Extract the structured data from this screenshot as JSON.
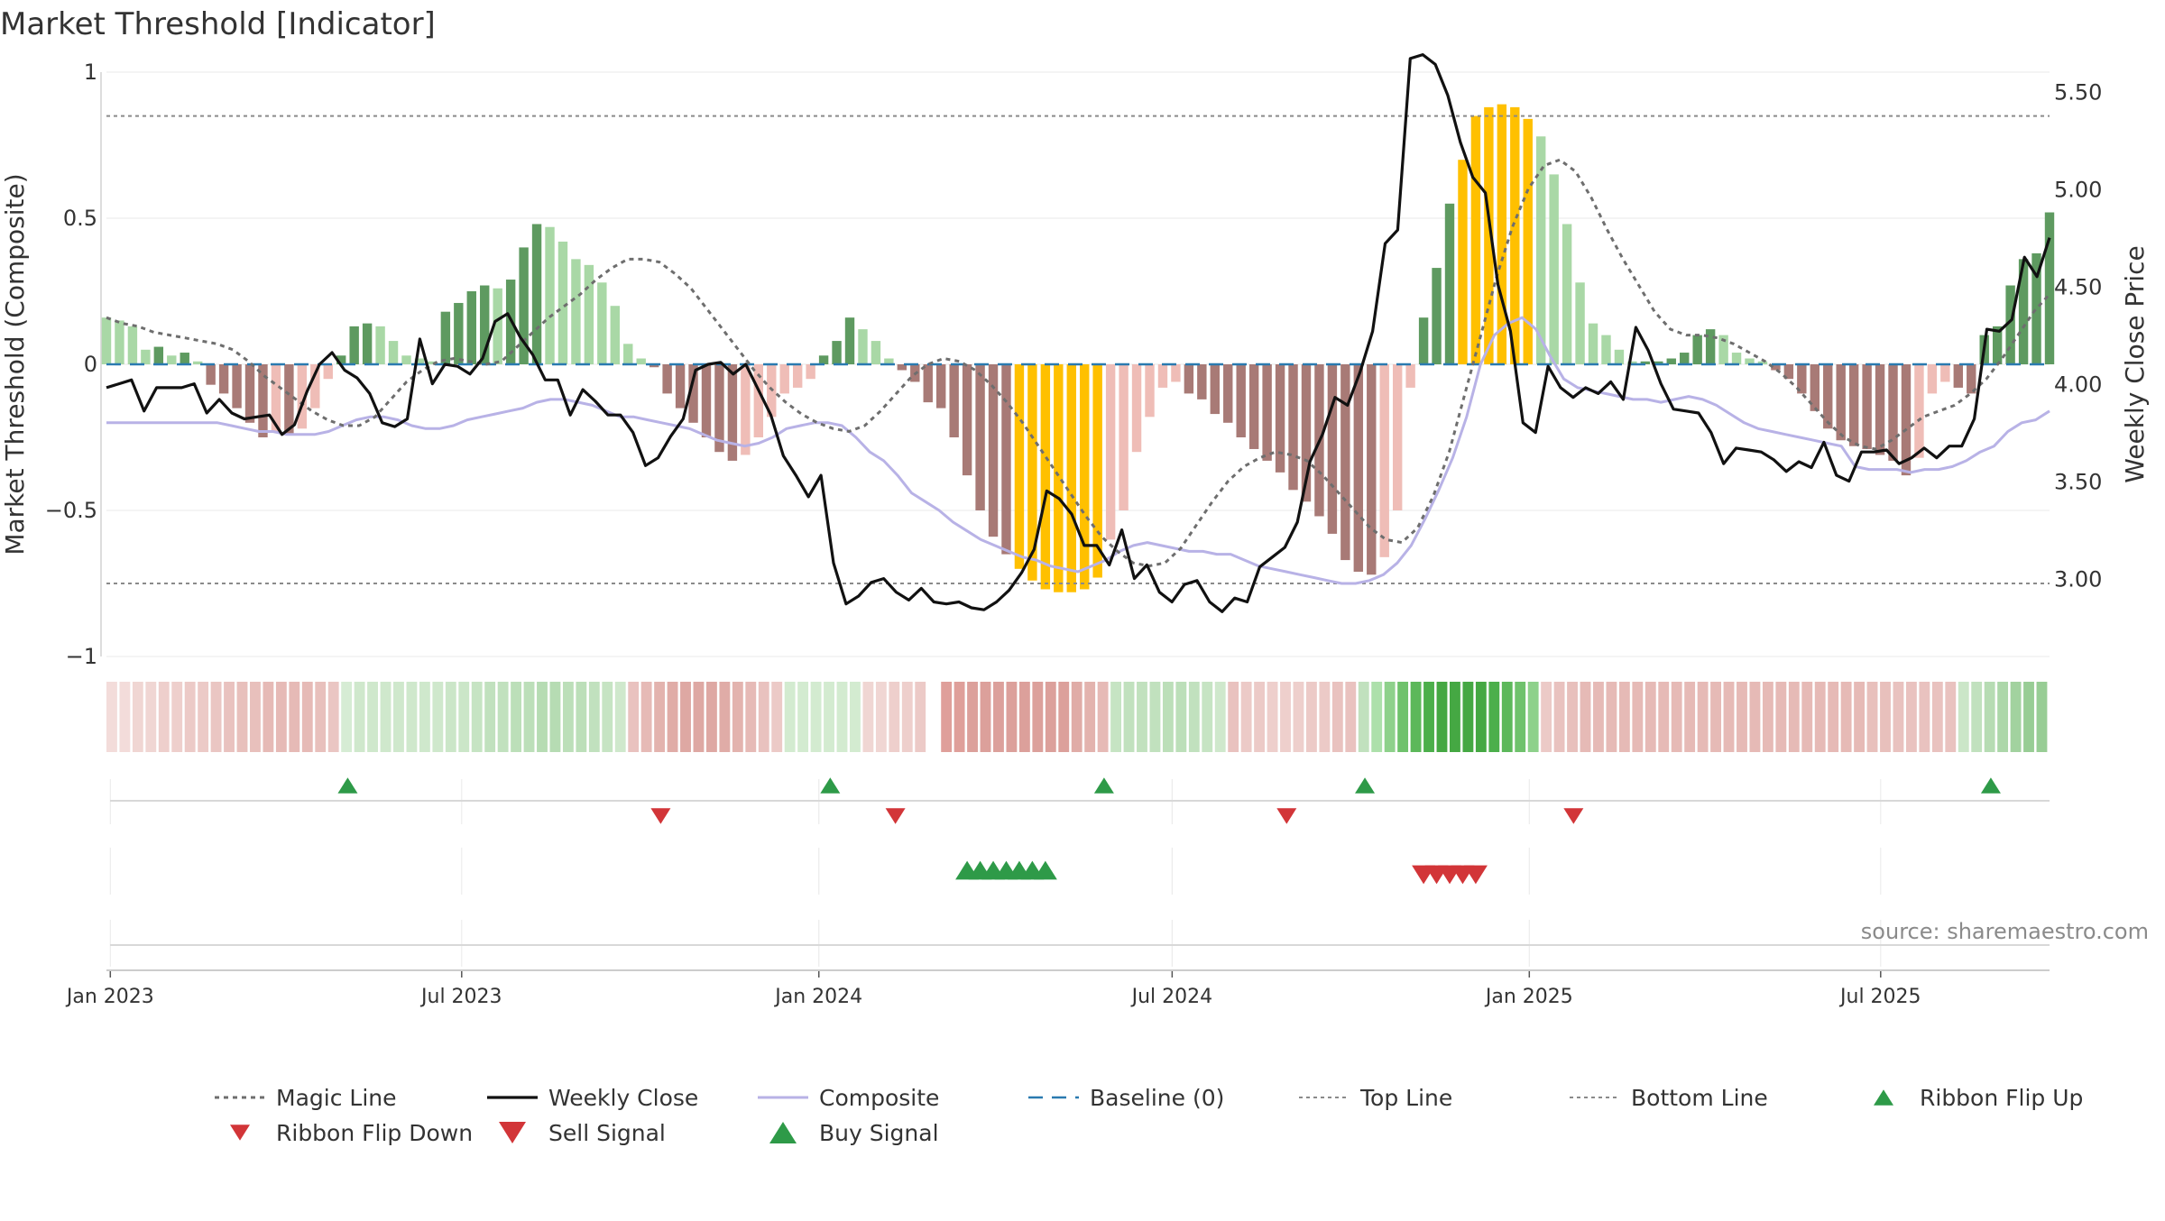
{
  "chart_data": {
    "type": "bar",
    "title": "Market Threshold [Indicator]",
    "ylabel_left": "Market Threshold (Composite)",
    "ylabel_right": "Weekly Close Price",
    "ylim_left": [
      -1,
      1
    ],
    "ylim_right": [
      2.6,
      5.6
    ],
    "yticks_left": [
      "1",
      "0.5",
      "0",
      "−0.5",
      "−1"
    ],
    "yticks_left_values": [
      1,
      0.5,
      0,
      -0.5,
      -1
    ],
    "yticks_right": [
      "5.50",
      "5.00",
      "4.50",
      "4.00",
      "3.50",
      "3.00"
    ],
    "yticks_right_values": [
      5.5,
      5.0,
      4.5,
      4.0,
      3.5,
      3.0
    ],
    "x_start": "2022-12-30",
    "x_end": "2025-09-26",
    "xticks": [
      {
        "label": "Jan 2023",
        "date": "2023-01-01"
      },
      {
        "label": "Jul 2023",
        "date": "2023-07-01"
      },
      {
        "label": "Jan 2024",
        "date": "2024-01-01"
      },
      {
        "label": "Jul 2024",
        "date": "2024-07-01"
      },
      {
        "label": "Jan 2025",
        "date": "2025-01-01"
      },
      {
        "label": "Jul 2025",
        "date": "2025-07-01"
      }
    ],
    "top_line": 0.85,
    "bottom_line": -0.75,
    "baseline": 0,
    "source": "source: sharemaestro.com",
    "colors": {
      "pos_dark": "#5e9a60",
      "pos_light": "#a9d8a6",
      "neg_dark": "#a87a76",
      "neg_light": "#efbdb7",
      "extreme": "#ffc000",
      "weekly_close": "#111111",
      "composite": "#b8b2e6",
      "magic_line": "#6e6e6e",
      "baseline": "#2a7ab0",
      "ref_line": "#8a8a8a",
      "buy": "#2e9a48",
      "sell": "#d23538",
      "ribbon_flip_up": "#2e9a48",
      "ribbon_flip_down": "#d23538"
    },
    "composite_bars": [
      0.16,
      0.15,
      0.13,
      0.05,
      0.06,
      0.03,
      0.04,
      0.01,
      -0.07,
      -0.1,
      -0.15,
      -0.2,
      -0.25,
      -0.23,
      -0.24,
      -0.22,
      -0.15,
      -0.05,
      0.03,
      0.13,
      0.14,
      0.13,
      0.08,
      0.03,
      0.02,
      0.01,
      0.18,
      0.21,
      0.25,
      0.27,
      0.26,
      0.29,
      0.4,
      0.48,
      0.47,
      0.42,
      0.36,
      0.34,
      0.28,
      0.2,
      0.07,
      0.02,
      -0.01,
      -0.1,
      -0.15,
      -0.2,
      -0.25,
      -0.3,
      -0.33,
      -0.31,
      -0.25,
      -0.18,
      -0.1,
      -0.08,
      -0.05,
      0.03,
      0.08,
      0.16,
      0.12,
      0.08,
      0.02,
      -0.02,
      -0.06,
      -0.13,
      -0.15,
      -0.25,
      -0.38,
      -0.5,
      -0.59,
      -0.65,
      -0.7,
      -0.74,
      -0.77,
      -0.78,
      -0.78,
      -0.77,
      -0.73,
      -0.6,
      -0.5,
      -0.3,
      -0.18,
      -0.08,
      -0.06,
      -0.1,
      -0.12,
      -0.17,
      -0.2,
      -0.25,
      -0.29,
      -0.33,
      -0.37,
      -0.43,
      -0.47,
      -0.52,
      -0.58,
      -0.67,
      -0.71,
      -0.72,
      -0.66,
      -0.5,
      -0.08,
      0.16,
      0.33,
      0.55,
      0.7,
      0.85,
      0.88,
      0.89,
      0.88,
      0.84,
      0.78,
      0.65,
      0.48,
      0.28,
      0.14,
      0.1,
      0.05,
      0.01,
      0.01,
      0.01,
      0.02,
      0.04,
      0.1,
      0.12,
      0.1,
      0.04,
      0.02,
      0.01,
      -0.02,
      -0.05,
      -0.1,
      -0.16,
      -0.22,
      -0.26,
      -0.28,
      -0.29,
      -0.31,
      -0.33,
      -0.38,
      -0.32,
      -0.1,
      -0.06,
      -0.08,
      -0.1,
      0.1,
      0.13,
      0.27,
      0.36,
      0.38,
      0.52
    ],
    "extreme_bars": [
      70,
      71,
      72,
      73,
      74,
      75,
      76,
      104,
      105,
      106,
      107,
      108,
      109
    ],
    "weekly_close": [
      3.98,
      4.0,
      4.02,
      3.86,
      3.98,
      3.98,
      3.98,
      4.0,
      3.85,
      3.92,
      3.85,
      3.82,
      3.83,
      3.84,
      3.74,
      3.79,
      3.96,
      4.1,
      4.16,
      4.07,
      4.03,
      3.95,
      3.8,
      3.78,
      3.82,
      4.23,
      4.0,
      4.1,
      4.09,
      4.05,
      4.13,
      4.32,
      4.36,
      4.24,
      4.15,
      4.02,
      4.02,
      3.84,
      3.97,
      3.91,
      3.84,
      3.84,
      3.75,
      3.58,
      3.62,
      3.73,
      3.82,
      4.07,
      4.1,
      4.11,
      4.05,
      4.1,
      3.97,
      3.84,
      3.63,
      3.53,
      3.42,
      3.53,
      3.08,
      2.87,
      2.91,
      2.98,
      3.0,
      2.93,
      2.89,
      2.95,
      2.88,
      2.87,
      2.88,
      2.85,
      2.84,
      2.88,
      2.94,
      3.03,
      3.15,
      3.45,
      3.41,
      3.33,
      3.17,
      3.17,
      3.07,
      3.25,
      3.0,
      3.07,
      2.93,
      2.88,
      2.97,
      2.99,
      2.88,
      2.83,
      2.9,
      2.88,
      3.06,
      3.11,
      3.16,
      3.29,
      3.6,
      3.74,
      3.93,
      3.89,
      4.06,
      4.27,
      4.72,
      4.79,
      5.67,
      5.69,
      5.64,
      5.48,
      5.24,
      5.06,
      4.98,
      4.51,
      4.27,
      3.8,
      3.75,
      4.09,
      3.98,
      3.93,
      3.98,
      3.95,
      4.01,
      3.92,
      4.29,
      4.17,
      4.0,
      3.87,
      3.86,
      3.85,
      3.75,
      3.59,
      3.67,
      3.66,
      3.65,
      3.61,
      3.55,
      3.6,
      3.57,
      3.7,
      3.53,
      3.5,
      3.65,
      3.65,
      3.66,
      3.59,
      3.62,
      3.67,
      3.62,
      3.68,
      3.68,
      3.82,
      4.28,
      4.27,
      4.33,
      4.65,
      4.55,
      4.75
    ],
    "composite_line": [
      -0.2,
      -0.2,
      -0.2,
      -0.2,
      -0.2,
      -0.2,
      -0.2,
      -0.2,
      -0.2,
      -0.21,
      -0.22,
      -0.23,
      -0.23,
      -0.24,
      -0.24,
      -0.24,
      -0.23,
      -0.21,
      -0.19,
      -0.18,
      -0.18,
      -0.19,
      -0.21,
      -0.22,
      -0.22,
      -0.21,
      -0.19,
      -0.18,
      -0.17,
      -0.16,
      -0.15,
      -0.13,
      -0.12,
      -0.12,
      -0.13,
      -0.14,
      -0.16,
      -0.18,
      -0.18,
      -0.19,
      -0.2,
      -0.21,
      -0.22,
      -0.24,
      -0.26,
      -0.27,
      -0.28,
      -0.27,
      -0.25,
      -0.22,
      -0.21,
      -0.2,
      -0.2,
      -0.21,
      -0.25,
      -0.3,
      -0.33,
      -0.38,
      -0.44,
      -0.47,
      -0.5,
      -0.54,
      -0.57,
      -0.6,
      -0.62,
      -0.64,
      -0.66,
      -0.67,
      -0.69,
      -0.7,
      -0.71,
      -0.69,
      -0.67,
      -0.64,
      -0.62,
      -0.61,
      -0.62,
      -0.63,
      -0.64,
      -0.64,
      -0.65,
      -0.65,
      -0.67,
      -0.69,
      -0.7,
      -0.71,
      -0.72,
      -0.73,
      -0.74,
      -0.75,
      -0.75,
      -0.74,
      -0.72,
      -0.68,
      -0.62,
      -0.53,
      -0.43,
      -0.32,
      -0.18,
      0.0,
      0.1,
      0.14,
      0.16,
      0.12,
      0.03,
      -0.05,
      -0.08,
      -0.09,
      -0.1,
      -0.11,
      -0.12,
      -0.12,
      -0.13,
      -0.12,
      -0.11,
      -0.12,
      -0.14,
      -0.17,
      -0.2,
      -0.22,
      -0.23,
      -0.24,
      -0.25,
      -0.26,
      -0.27,
      -0.28,
      -0.35,
      -0.36,
      -0.36,
      -0.36,
      -0.37,
      -0.36,
      -0.36,
      -0.35,
      -0.33,
      -0.3,
      -0.28,
      -0.23,
      -0.2,
      -0.19,
      -0.16
    ],
    "magic_line": [
      0.16,
      0.14,
      0.13,
      0.11,
      0.1,
      0.09,
      0.08,
      0.07,
      0.05,
      0.01,
      -0.04,
      -0.08,
      -0.12,
      -0.16,
      -0.19,
      -0.21,
      -0.21,
      -0.18,
      -0.12,
      -0.06,
      -0.02,
      0.01,
      0.02,
      0.01,
      0.0,
      0.01,
      0.06,
      0.11,
      0.16,
      0.2,
      0.24,
      0.29,
      0.33,
      0.36,
      0.36,
      0.35,
      0.31,
      0.26,
      0.19,
      0.12,
      0.05,
      -0.02,
      -0.08,
      -0.13,
      -0.17,
      -0.2,
      -0.22,
      -0.23,
      -0.21,
      -0.16,
      -0.1,
      -0.04,
      0.0,
      0.02,
      0.01,
      -0.02,
      -0.07,
      -0.13,
      -0.2,
      -0.28,
      -0.36,
      -0.44,
      -0.52,
      -0.59,
      -0.64,
      -0.68,
      -0.69,
      -0.68,
      -0.63,
      -0.55,
      -0.47,
      -0.4,
      -0.35,
      -0.32,
      -0.3,
      -0.31,
      -0.33,
      -0.38,
      -0.44,
      -0.5,
      -0.56,
      -0.6,
      -0.61,
      -0.56,
      -0.45,
      -0.3,
      -0.1,
      0.1,
      0.3,
      0.47,
      0.6,
      0.68,
      0.7,
      0.66,
      0.57,
      0.46,
      0.36,
      0.27,
      0.18,
      0.12,
      0.1,
      0.1,
      0.09,
      0.07,
      0.04,
      0.01,
      -0.03,
      -0.08,
      -0.14,
      -0.2,
      -0.25,
      -0.28,
      -0.29,
      -0.26,
      -0.22,
      -0.18,
      -0.16,
      -0.14,
      -0.1,
      -0.05,
      0.02,
      0.1,
      0.18,
      0.24
    ],
    "ribbon_colors": [
      "#f3dcda",
      "#f3dcda",
      "#f0d6d3",
      "#f0d6d3",
      "#eecfcc",
      "#eecfcc",
      "#eccac7",
      "#eccac7",
      "#eac6c3",
      "#e9c2bf",
      "#e8c0bc",
      "#e8c0bc",
      "#e6bab6",
      "#e6bab6",
      "#e6bab6",
      "#e6bab6",
      "#e8c0bc",
      "#eac6c3",
      "#d6ecd4",
      "#cfe8cc",
      "#cfe8cc",
      "#cfe8cc",
      "#cfe8cc",
      "#cfe8cc",
      "#cfe8cc",
      "#cfe8cc",
      "#cbe6c8",
      "#cbe6c8",
      "#c6e4c3",
      "#c1e1be",
      "#c1e1be",
      "#bcdfb9",
      "#bcdfb9",
      "#b6dcb3",
      "#b6dcb3",
      "#bcdfb9",
      "#bcdfb9",
      "#c1e1be",
      "#c6e4c3",
      "#cfe8cc",
      "#e9c2bf",
      "#e6bab6",
      "#e3b3ae",
      "#e0aca7",
      "#dea8a3",
      "#dea8a3",
      "#dea8a3",
      "#e0aca7",
      "#e3b3ae",
      "#e6bab6",
      "#e9c2bf",
      "#eccac7",
      "#d3ebd0",
      "#d3ebd0",
      "#d3ebd0",
      "#d3ebd0",
      "#d3ebd0",
      "#d3ebd0",
      "#f0d6d3",
      "#f0d6d3",
      "#eecfcc",
      "#eecfcc",
      "#eccac7",
      "#ffffff",
      "#df9f9a",
      "#df9f9a",
      "#dca09b",
      "#dca09b",
      "#dca09b",
      "#dca09b",
      "#dca09b",
      "#dca09b",
      "#dca09b",
      "#dca09b",
      "#e0aca7",
      "#e3b3ae",
      "#e6bab6",
      "#c6e4c3",
      "#c1e1be",
      "#c1e1be",
      "#c1e1be",
      "#bcdfb9",
      "#bcdfb9",
      "#c1e1be",
      "#c6e4c3",
      "#cfe8cc",
      "#e9c2bf",
      "#eccac7",
      "#eccac7",
      "#eecfcc",
      "#eecfcc",
      "#eecfcc",
      "#eccac7",
      "#eccac7",
      "#e9c2bf",
      "#e9c2bf",
      "#c1e1be",
      "#ade0ab",
      "#8ed18b",
      "#6fc26c",
      "#5cb85a",
      "#4caf4b",
      "#45a843",
      "#45a843",
      "#45a843",
      "#45a843",
      "#4caf4b",
      "#5cb85a",
      "#6fc26c",
      "#8ed18b",
      "#eccac7",
      "#e9c2bf",
      "#e8c0bc",
      "#e6bab6",
      "#e6bab6",
      "#e6bab6",
      "#e6bab6",
      "#e6bab6",
      "#e6bab6",
      "#e6bab6",
      "#e6bab6",
      "#e6bab6",
      "#e6bab6",
      "#e6bab6",
      "#e6bab6",
      "#e6bab6",
      "#e6bab6",
      "#e6bab6",
      "#e6bab6",
      "#e6bab6",
      "#e6bab6",
      "#e6bab6",
      "#e6bab6",
      "#e6bab6",
      "#e6bab6",
      "#e8c0bc",
      "#e8c0bc",
      "#e9c2bf",
      "#e9c2bf",
      "#e9c2bf",
      "#e9c2bf",
      "#e9c2bf",
      "#cbe6c8",
      "#c1e1be",
      "#b6dcb3",
      "#acd7a9",
      "#a2d29f",
      "#98cd95",
      "#98cd95"
    ],
    "ribbon_flip_up": [
      18,
      55,
      76,
      96,
      144
    ],
    "ribbon_flip_down": [
      42,
      60,
      90,
      112
    ],
    "buy_signal": [
      66,
      67,
      68,
      69,
      70,
      71,
      72
    ],
    "sell_signal": [
      101,
      102,
      103,
      104,
      105
    ],
    "legend": [
      {
        "label": "Magic Line",
        "style": "dotted"
      },
      {
        "label": "Weekly Close",
        "style": "solid-black"
      },
      {
        "label": "Composite",
        "style": "solid-lavender"
      },
      {
        "label": "Baseline (0)",
        "style": "dashed-blue"
      },
      {
        "label": "Top Line",
        "style": "dotted-grey"
      },
      {
        "label": "Bottom Line",
        "style": "dotted-grey"
      },
      {
        "label": "Ribbon Flip Up",
        "style": "triangle-up-green"
      },
      {
        "label": "Ribbon Flip Down",
        "style": "triangle-down-red"
      },
      {
        "label": "Sell Signal",
        "style": "triangle-down-red-large"
      },
      {
        "label": "Buy Signal",
        "style": "triangle-up-green-large"
      }
    ]
  }
}
